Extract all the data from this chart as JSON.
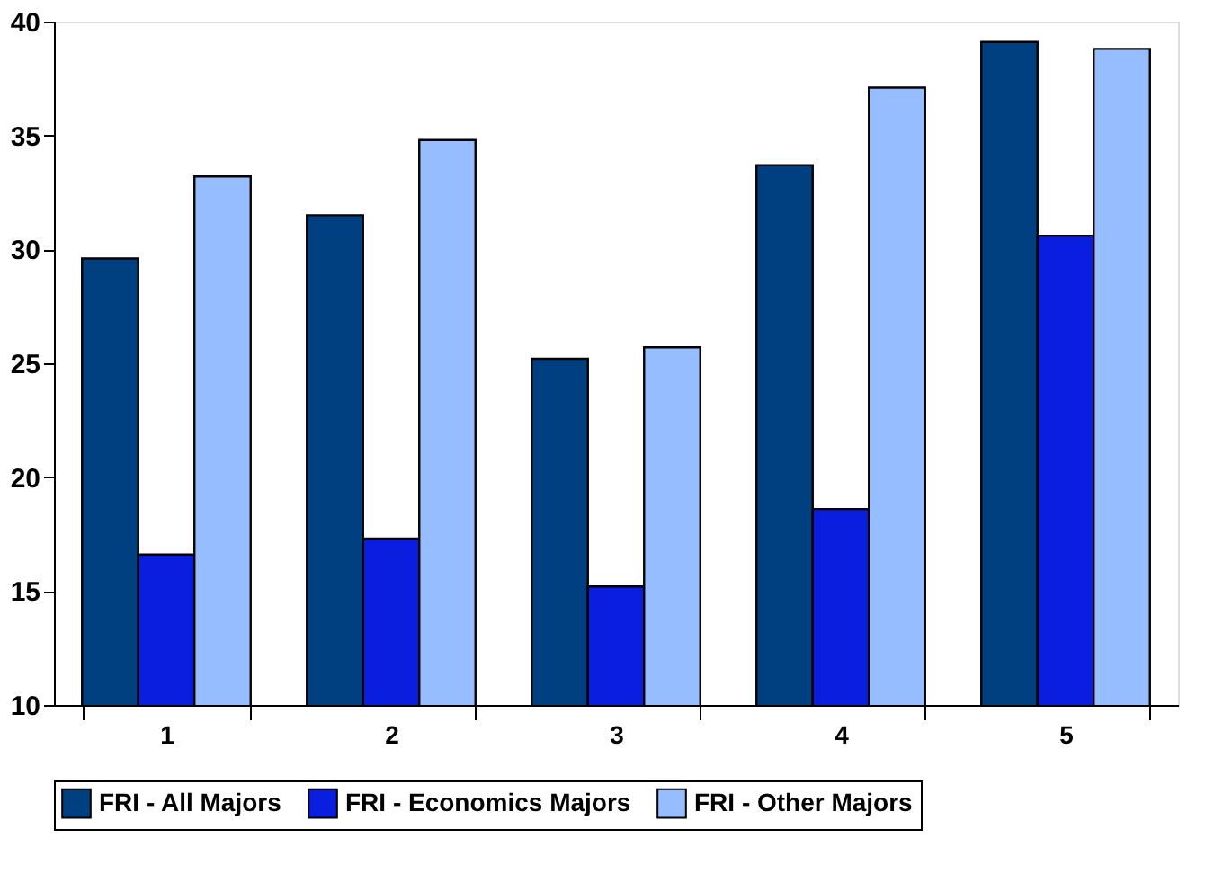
{
  "chart_data": {
    "type": "bar",
    "categories": [
      "1",
      "2",
      "3",
      "4",
      "5"
    ],
    "series": [
      {
        "name": "FRI - All Majors",
        "color": "#003f80",
        "values": [
          29.6,
          31.5,
          25.2,
          33.7,
          39.1
        ]
      },
      {
        "name": "FRI - Economics Majors",
        "color": "#0a1ee0",
        "values": [
          16.6,
          17.3,
          15.2,
          18.6,
          30.6
        ]
      },
      {
        "name": "FRI - Other Majors",
        "color": "#96bdff",
        "values": [
          33.2,
          34.8,
          25.7,
          37.1,
          38.8
        ]
      }
    ],
    "ylim": [
      10,
      40
    ],
    "yticks": [
      10,
      15,
      20,
      25,
      30,
      35,
      40
    ],
    "grid": false,
    "legend": "bottom"
  }
}
